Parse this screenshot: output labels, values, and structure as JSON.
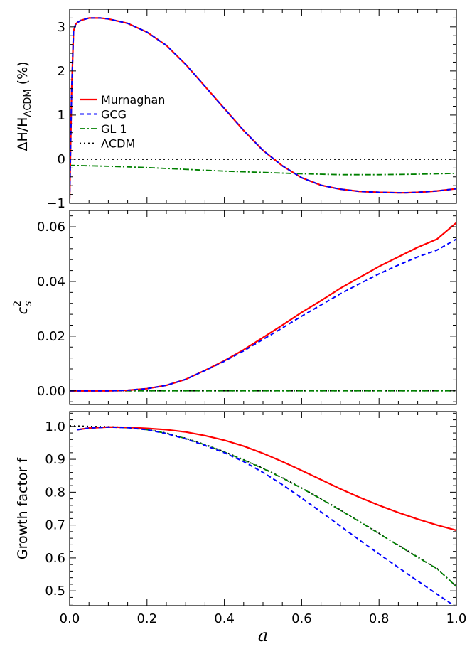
{
  "colors": {
    "murnaghan": "#ff0000",
    "gcg": "#0000ff",
    "gl1": "#008000",
    "lcdm": "#000000"
  },
  "chart_data": [
    {
      "id": "panel1",
      "type": "line",
      "ylabel_parts": {
        "main": "ΔH/H",
        "sub": "ΛCDM",
        "suffix": "  (%)"
      },
      "xlim": [
        0.0,
        1.0
      ],
      "ylim": [
        -1.0,
        3.4
      ],
      "yticks": [
        -1,
        0,
        1,
        2,
        3
      ],
      "ytick_labels": [
        "−1",
        "0",
        "1",
        "2",
        "3"
      ],
      "legend": {
        "position": "left-center",
        "entries": [
          {
            "key": "murnaghan",
            "label": "Murnaghan"
          },
          {
            "key": "gcg",
            "label": "GCG"
          },
          {
            "key": "gl1",
            "label": "GL 1"
          },
          {
            "key": "lcdm",
            "label": "ΛCDM"
          }
        ]
      },
      "series": [
        {
          "key": "murnaghan",
          "name": "Murnaghan",
          "x": [
            0.0,
            0.005,
            0.01,
            0.015,
            0.02,
            0.03,
            0.05,
            0.08,
            0.1,
            0.15,
            0.2,
            0.25,
            0.3,
            0.35,
            0.4,
            0.45,
            0.5,
            0.55,
            0.6,
            0.65,
            0.7,
            0.75,
            0.8,
            0.85,
            0.87,
            0.9,
            0.95,
            1.0
          ],
          "y": [
            -0.9,
            1.5,
            2.9,
            3.05,
            3.1,
            3.15,
            3.2,
            3.2,
            3.18,
            3.08,
            2.88,
            2.58,
            2.15,
            1.65,
            1.15,
            0.65,
            0.2,
            -0.15,
            -0.42,
            -0.59,
            -0.68,
            -0.73,
            -0.75,
            -0.76,
            -0.76,
            -0.75,
            -0.72,
            -0.67
          ]
        },
        {
          "key": "gcg",
          "name": "GCG",
          "x": [
            0.0,
            0.005,
            0.01,
            0.015,
            0.02,
            0.03,
            0.05,
            0.08,
            0.1,
            0.15,
            0.2,
            0.25,
            0.3,
            0.35,
            0.4,
            0.45,
            0.5,
            0.55,
            0.6,
            0.65,
            0.7,
            0.75,
            0.8,
            0.85,
            0.87,
            0.9,
            0.95,
            1.0
          ],
          "y": [
            -0.9,
            1.5,
            2.9,
            3.05,
            3.1,
            3.15,
            3.2,
            3.2,
            3.18,
            3.08,
            2.88,
            2.58,
            2.15,
            1.65,
            1.15,
            0.65,
            0.2,
            -0.15,
            -0.42,
            -0.59,
            -0.68,
            -0.73,
            -0.75,
            -0.76,
            -0.76,
            -0.75,
            -0.72,
            -0.67
          ]
        },
        {
          "key": "gl1",
          "name": "GL 1",
          "x": [
            0.0,
            0.1,
            0.2,
            0.3,
            0.4,
            0.5,
            0.6,
            0.7,
            0.8,
            0.9,
            1.0
          ],
          "y": [
            -0.14,
            -0.16,
            -0.19,
            -0.23,
            -0.27,
            -0.3,
            -0.33,
            -0.35,
            -0.35,
            -0.34,
            -0.32
          ]
        },
        {
          "key": "lcdm",
          "name": "ΛCDM",
          "x": [
            0.0,
            1.0
          ],
          "y": [
            0.0,
            0.0
          ]
        }
      ]
    },
    {
      "id": "panel2",
      "type": "line",
      "ylabel_parts": {
        "main": "c",
        "sup": "2",
        "sub": "s"
      },
      "xlim": [
        0.0,
        1.0
      ],
      "ylim": [
        -0.005,
        0.066
      ],
      "yticks": [
        0.0,
        0.02,
        0.04,
        0.06
      ],
      "ytick_labels": [
        "0.00",
        "0.02",
        "0.04",
        "0.06"
      ],
      "series": [
        {
          "key": "murnaghan",
          "name": "Murnaghan",
          "x": [
            0.0,
            0.1,
            0.15,
            0.2,
            0.25,
            0.3,
            0.35,
            0.4,
            0.45,
            0.5,
            0.55,
            0.6,
            0.65,
            0.7,
            0.75,
            0.8,
            0.85,
            0.9,
            0.95,
            1.0
          ],
          "y": [
            0.0,
            0.0,
            0.0002,
            0.0008,
            0.002,
            0.0042,
            0.0075,
            0.011,
            0.015,
            0.0195,
            0.024,
            0.0287,
            0.033,
            0.0375,
            0.0415,
            0.0455,
            0.049,
            0.0525,
            0.0555,
            0.0615
          ]
        },
        {
          "key": "gcg",
          "name": "GCG",
          "x": [
            0.0,
            0.1,
            0.15,
            0.2,
            0.25,
            0.3,
            0.35,
            0.4,
            0.45,
            0.5,
            0.55,
            0.6,
            0.65,
            0.7,
            0.75,
            0.8,
            0.85,
            0.9,
            0.95,
            1.0
          ],
          "y": [
            0.0,
            0.0,
            0.0002,
            0.0008,
            0.002,
            0.0042,
            0.0074,
            0.0108,
            0.0146,
            0.0188,
            0.023,
            0.0273,
            0.0314,
            0.0355,
            0.0392,
            0.0428,
            0.046,
            0.049,
            0.0515,
            0.0555
          ]
        },
        {
          "key": "gl1",
          "name": "GL 1",
          "x": [
            0.0,
            1.0
          ],
          "y": [
            0.0,
            0.0
          ]
        },
        {
          "key": "lcdm",
          "name": "ΛCDM",
          "x": [
            0.0,
            1.0
          ],
          "y": [
            0.0,
            0.0
          ]
        }
      ]
    },
    {
      "id": "panel3",
      "type": "line",
      "ylabel_parts": {
        "main": "Growth factor  f"
      },
      "xlabel": "a",
      "xlim": [
        0.0,
        1.0
      ],
      "ylim": [
        0.455,
        1.045
      ],
      "yticks": [
        0.5,
        0.6,
        0.7,
        0.8,
        0.9,
        1.0
      ],
      "ytick_labels": [
        "0.5",
        "0.6",
        "0.7",
        "0.8",
        "0.9",
        "1.0"
      ],
      "xticks": [
        0.0,
        0.2,
        0.4,
        0.6,
        0.8,
        1.0
      ],
      "xtick_labels": [
        "0.0",
        "0.2",
        "0.4",
        "0.6",
        "0.8",
        "1.0"
      ],
      "series": [
        {
          "key": "murnaghan",
          "name": "Murnaghan",
          "x": [
            0.02,
            0.05,
            0.1,
            0.15,
            0.2,
            0.25,
            0.3,
            0.35,
            0.4,
            0.45,
            0.5,
            0.55,
            0.6,
            0.65,
            0.7,
            0.75,
            0.8,
            0.85,
            0.9,
            0.95,
            1.0
          ],
          "y": [
            0.99,
            0.995,
            0.998,
            0.997,
            0.994,
            0.99,
            0.983,
            0.972,
            0.958,
            0.94,
            0.918,
            0.893,
            0.866,
            0.838,
            0.81,
            0.784,
            0.76,
            0.738,
            0.718,
            0.7,
            0.684
          ]
        },
        {
          "key": "gcg",
          "name": "GCG",
          "x": [
            0.02,
            0.05,
            0.1,
            0.15,
            0.2,
            0.25,
            0.3,
            0.35,
            0.4,
            0.45,
            0.5,
            0.55,
            0.6,
            0.65,
            0.7,
            0.75,
            0.8,
            0.85,
            0.9,
            0.95,
            1.0
          ],
          "y": [
            0.99,
            0.995,
            0.998,
            0.996,
            0.99,
            0.978,
            0.962,
            0.942,
            0.92,
            0.893,
            0.86,
            0.823,
            0.782,
            0.74,
            0.697,
            0.654,
            0.612,
            0.571,
            0.53,
            0.49,
            0.45
          ]
        },
        {
          "key": "gl1",
          "name": "GL 1",
          "x": [
            0.02,
            0.05,
            0.1,
            0.15,
            0.2,
            0.25,
            0.3,
            0.35,
            0.4,
            0.45,
            0.5,
            0.55,
            0.6,
            0.65,
            0.7,
            0.75,
            0.8,
            0.85,
            0.9,
            0.95,
            1.0
          ],
          "y": [
            0.99,
            0.995,
            0.998,
            0.996,
            0.99,
            0.979,
            0.963,
            0.944,
            0.922,
            0.898,
            0.872,
            0.843,
            0.812,
            0.779,
            0.745,
            0.71,
            0.674,
            0.638,
            0.602,
            0.567,
            0.513
          ]
        },
        {
          "key": "lcdm",
          "name": "ΛCDM",
          "x": [
            0.0,
            0.05,
            0.1,
            0.15,
            0.2,
            0.25,
            0.3,
            0.35,
            0.4,
            0.45,
            0.5,
            0.55,
            0.6,
            0.65,
            0.7,
            0.75,
            0.8,
            0.85,
            0.9,
            0.95,
            1.0
          ],
          "y": [
            1.002,
            1.0,
            0.999,
            0.997,
            0.991,
            0.98,
            0.964,
            0.945,
            0.923,
            0.899,
            0.873,
            0.844,
            0.813,
            0.78,
            0.746,
            0.711,
            0.675,
            0.639,
            0.603,
            0.568,
            0.513
          ]
        }
      ]
    }
  ]
}
